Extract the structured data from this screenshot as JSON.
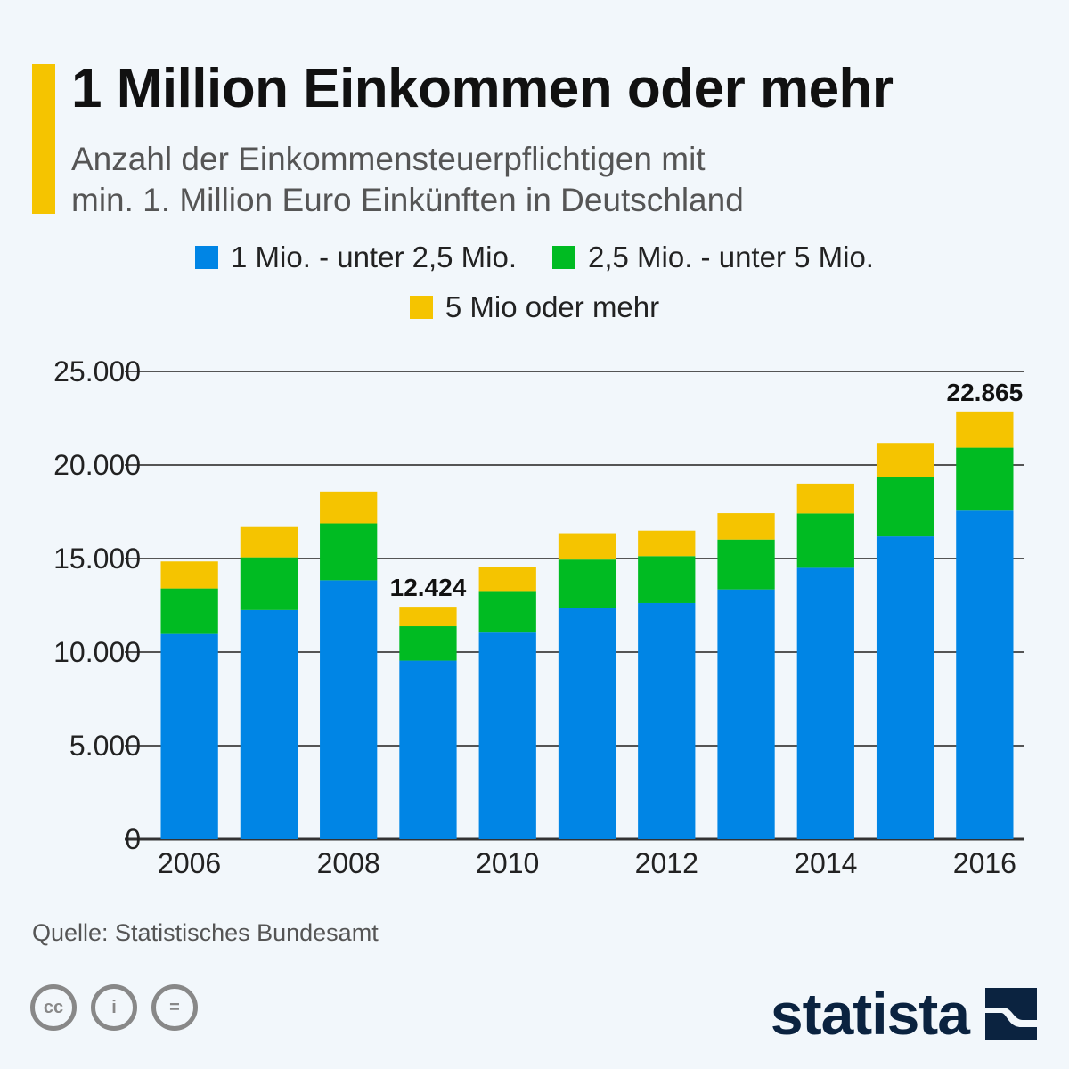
{
  "header": {
    "title": "1 Million Einkommen oder mehr",
    "subtitle_line1": "Anzahl der Einkommensteuerpflichtigen mit",
    "subtitle_line2": "min. 1. Million Euro Einkünften in Deutschland",
    "accent_color": "#f5c400"
  },
  "legend": [
    {
      "label": "1 Mio. - unter 2,5 Mio.",
      "color": "#0085e5"
    },
    {
      "label": "2,5 Mio. - unter 5 Mio.",
      "color": "#00bb22"
    },
    {
      "label": "5 Mio oder mehr",
      "color": "#f5c400"
    }
  ],
  "chart_data": {
    "type": "bar",
    "stacked": true,
    "title": "1 Million Einkommen oder mehr",
    "xlabel": "",
    "ylabel": "",
    "ylim": [
      0,
      25000
    ],
    "grid": true,
    "legend_position": "top-center",
    "categories": [
      "2006",
      "2007",
      "2008",
      "2009",
      "2010",
      "2011",
      "2012",
      "2013",
      "2014",
      "2015",
      "2016"
    ],
    "x_tick_labels": [
      "2006",
      "2008",
      "2010",
      "2012",
      "2014",
      "2016"
    ],
    "y_ticks": [
      0,
      5000,
      10000,
      15000,
      20000,
      25000
    ],
    "y_tick_labels": [
      "0",
      "5.000",
      "10.000",
      "15.000",
      "20.000",
      "25.000"
    ],
    "series": [
      {
        "name": "1 Mio. - unter 2,5 Mio.",
        "color": "#0085e5",
        "values": [
          10970,
          12245,
          13840,
          9545,
          11040,
          12365,
          12620,
          13350,
          14505,
          16185,
          17560
        ]
      },
      {
        "name": "2,5 Mio. - unter 5 Mio.",
        "color": "#00bb22",
        "values": [
          2430,
          2820,
          3040,
          1835,
          2225,
          2580,
          2510,
          2665,
          2905,
          3195,
          3365
        ]
      },
      {
        "name": "5 Mio oder mehr",
        "color": "#f5c400",
        "values": [
          1445,
          1615,
          1700,
          1044,
          1290,
          1410,
          1360,
          1410,
          1595,
          1800,
          1940
        ]
      }
    ],
    "annotations": [
      {
        "category": "2009",
        "text": "12.424",
        "value": 12424
      },
      {
        "category": "2016",
        "text": "22.865",
        "value": 22865
      }
    ]
  },
  "footer": {
    "source": "Quelle: Statistisches Bundesamt",
    "license_icons": [
      "cc-icon",
      "attribution-icon",
      "no-derivatives-icon"
    ],
    "license_glyphs": [
      "cc",
      "i",
      "="
    ],
    "logo_text": "statista",
    "logo_color": "#0b2340"
  }
}
